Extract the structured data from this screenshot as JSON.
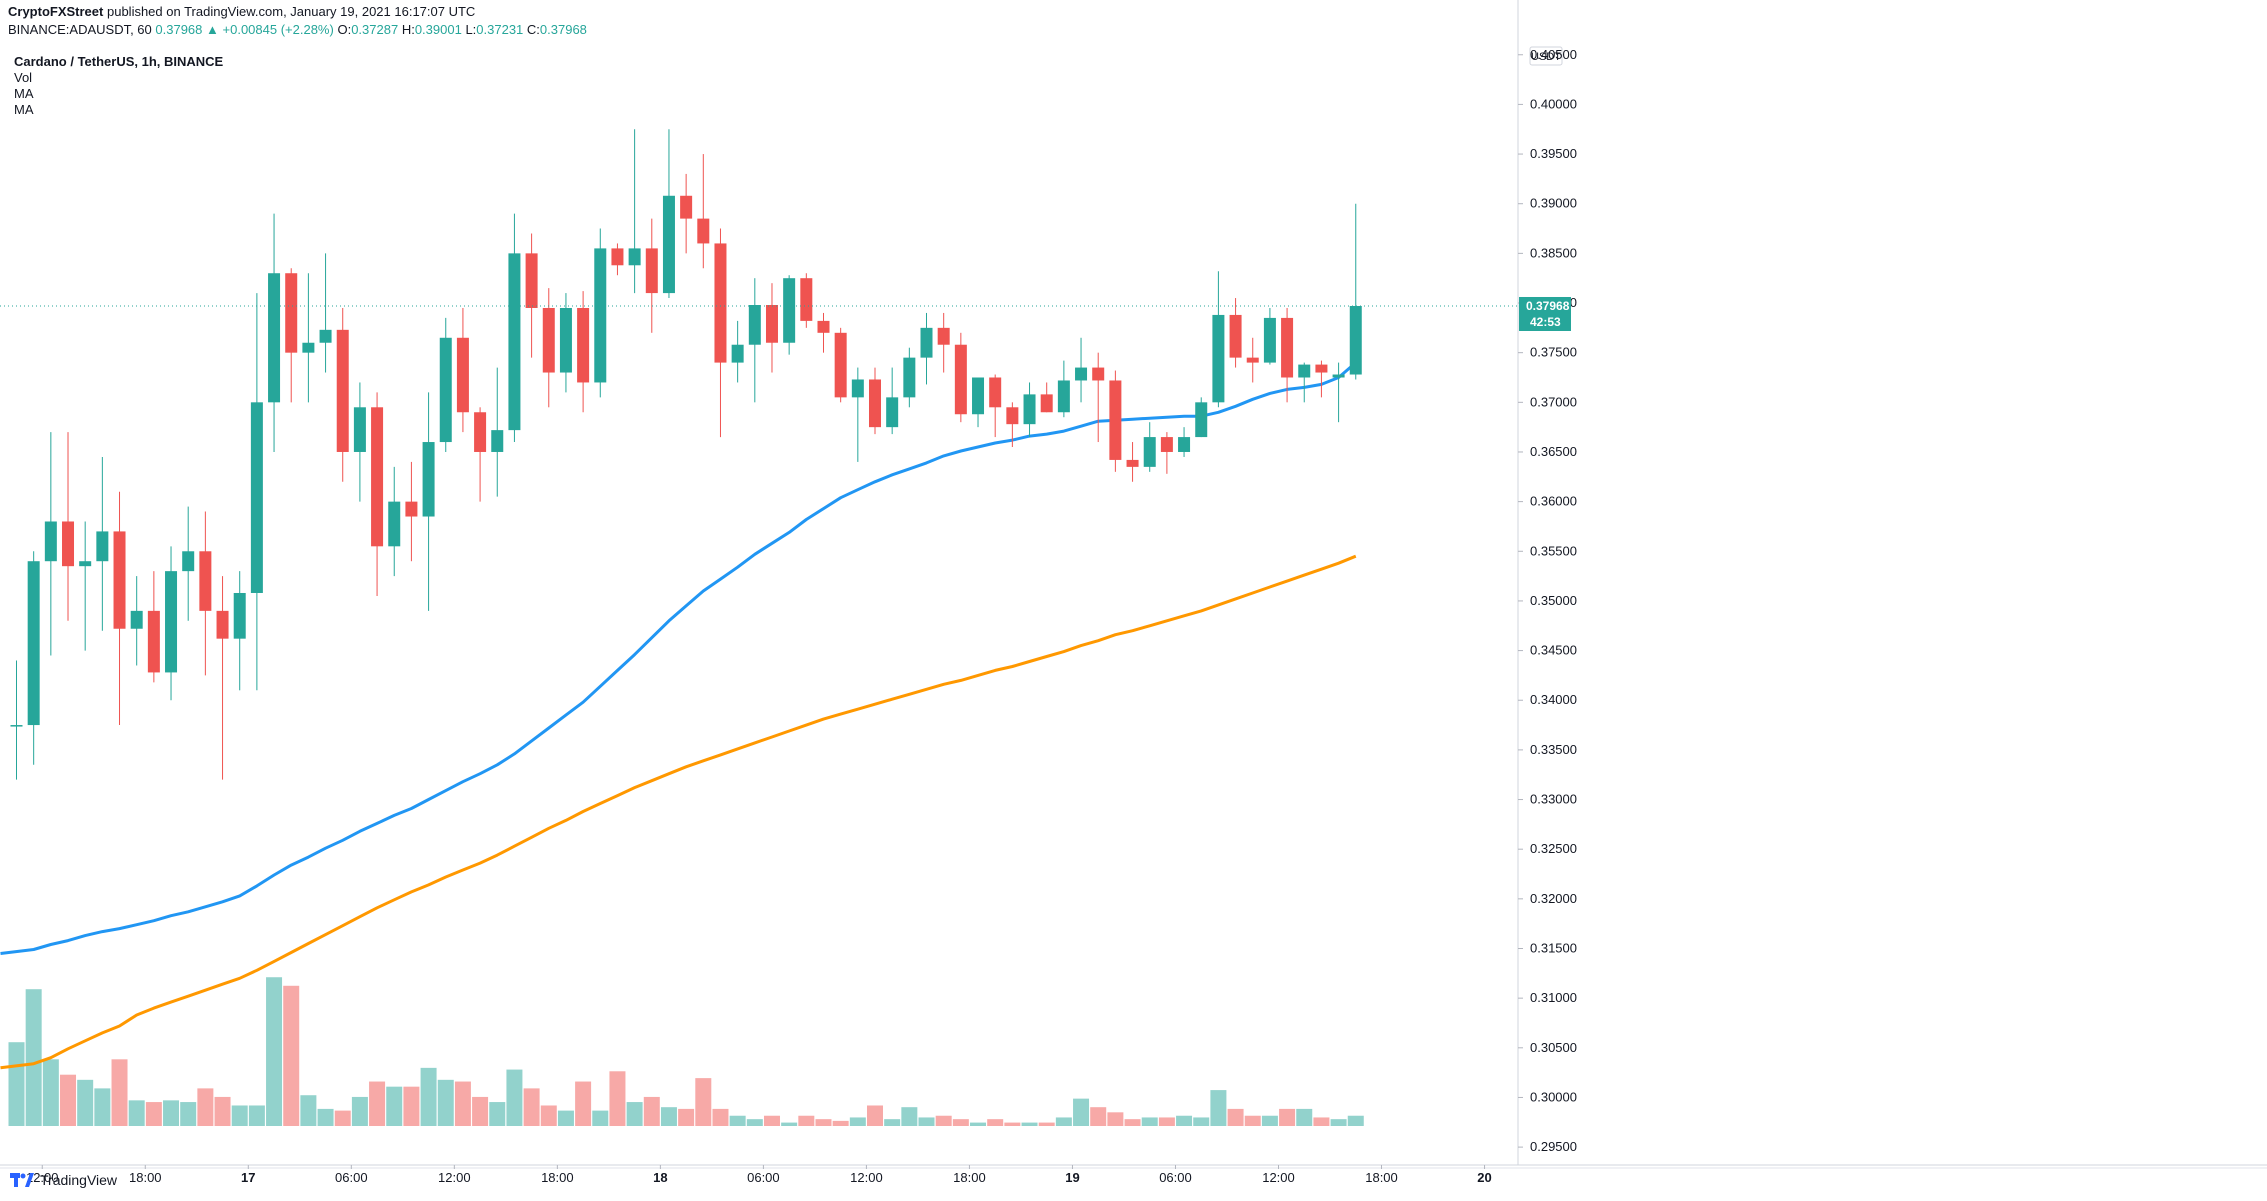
{
  "header": {
    "publisher": "CryptoFXStreet",
    "published_text": "published on TradingView.com, January 19, 2021 16:17:07 UTC",
    "symbol": "BINANCE:ADAUSDT, 60",
    "last": "0.37968",
    "change": "+0.00845 (+2.28%)",
    "O": "0.37287",
    "H": "0.39001",
    "L": "0.37231",
    "C": "0.37968"
  },
  "legend": {
    "title": "Cardano / TetherUS, 1h, BINANCE",
    "items": [
      "Vol",
      "MA",
      "MA"
    ]
  },
  "price_axis": {
    "currency_label": "USDT",
    "current_price": "0.37968",
    "countdown": "42:53"
  },
  "footer": {
    "brand": "TradingView"
  },
  "colors": {
    "up": "#26a69a",
    "down": "#ef5350",
    "vol_up": "#92d2cc",
    "vol_down": "#f7a9a7",
    "ma_fast": "#2196f3",
    "ma_slow": "#ff9800",
    "price_label_bg": "#26a69a"
  },
  "chart_data": {
    "type": "candlestick",
    "title": "Cardano / TetherUS, 1h, BINANCE",
    "ylim": [
      0.2935,
      0.4085
    ],
    "y_ticks": [
      "0.29500",
      "0.30000",
      "0.30500",
      "0.31000",
      "0.31500",
      "0.32000",
      "0.32500",
      "0.33000",
      "0.33500",
      "0.34000",
      "0.34500",
      "0.35000",
      "0.35500",
      "0.36000",
      "0.36500",
      "0.37000",
      "0.37500",
      "0.38000",
      "0.38500",
      "0.39000",
      "0.39500",
      "0.40000",
      "0.40500"
    ],
    "x_ticks": [
      {
        "label": "12:00",
        "bar": 1.5
      },
      {
        "label": "18:00",
        "bar": 7.5
      },
      {
        "label": "17",
        "bar": 13.5
      },
      {
        "label": "06:00",
        "bar": 19.5
      },
      {
        "label": "12:00",
        "bar": 25.5
      },
      {
        "label": "18:00",
        "bar": 31.5
      },
      {
        "label": "18",
        "bar": 37.5
      },
      {
        "label": "06:00",
        "bar": 43.5
      },
      {
        "label": "12:00",
        "bar": 49.5
      },
      {
        "label": "18:00",
        "bar": 55.5
      },
      {
        "label": "19",
        "bar": 61.5
      },
      {
        "label": "06:00",
        "bar": 67.5
      },
      {
        "label": "12:00",
        "bar": 73.5
      },
      {
        "label": "18:00",
        "bar": 79.5
      },
      {
        "label": "20",
        "bar": 85.5
      }
    ],
    "candles": [
      [
        0.3375,
        0.344,
        0.332,
        0.3375
      ],
      [
        0.3375,
        0.355,
        0.3335,
        0.354
      ],
      [
        0.354,
        0.367,
        0.3445,
        0.358
      ],
      [
        0.358,
        0.367,
        0.348,
        0.3535
      ],
      [
        0.3535,
        0.358,
        0.345,
        0.354
      ],
      [
        0.354,
        0.3645,
        0.347,
        0.357
      ],
      [
        0.357,
        0.361,
        0.3375,
        0.3472
      ],
      [
        0.3472,
        0.3525,
        0.3435,
        0.349
      ],
      [
        0.349,
        0.353,
        0.3418,
        0.3428
      ],
      [
        0.3428,
        0.3555,
        0.34,
        0.353
      ],
      [
        0.353,
        0.3595,
        0.348,
        0.355
      ],
      [
        0.355,
        0.359,
        0.3425,
        0.349
      ],
      [
        0.349,
        0.3525,
        0.332,
        0.3462
      ],
      [
        0.3462,
        0.353,
        0.341,
        0.3508
      ],
      [
        0.3508,
        0.381,
        0.341,
        0.37
      ],
      [
        0.37,
        0.389,
        0.365,
        0.383
      ],
      [
        0.383,
        0.3835,
        0.37,
        0.375
      ],
      [
        0.375,
        0.383,
        0.37,
        0.376
      ],
      [
        0.376,
        0.385,
        0.373,
        0.3773
      ],
      [
        0.3773,
        0.3795,
        0.362,
        0.365
      ],
      [
        0.365,
        0.372,
        0.36,
        0.3695
      ],
      [
        0.3695,
        0.371,
        0.3505,
        0.3555
      ],
      [
        0.3555,
        0.3635,
        0.3525,
        0.36
      ],
      [
        0.36,
        0.364,
        0.354,
        0.3585
      ],
      [
        0.3585,
        0.371,
        0.349,
        0.366
      ],
      [
        0.366,
        0.3785,
        0.365,
        0.3765
      ],
      [
        0.3765,
        0.3795,
        0.367,
        0.369
      ],
      [
        0.369,
        0.3695,
        0.36,
        0.365
      ],
      [
        0.365,
        0.3735,
        0.3605,
        0.3672
      ],
      [
        0.3672,
        0.389,
        0.366,
        0.385
      ],
      [
        0.385,
        0.387,
        0.3745,
        0.3795
      ],
      [
        0.3795,
        0.3815,
        0.3695,
        0.373
      ],
      [
        0.373,
        0.381,
        0.371,
        0.3795
      ],
      [
        0.3795,
        0.3812,
        0.369,
        0.372
      ],
      [
        0.372,
        0.3875,
        0.3705,
        0.3855
      ],
      [
        0.3855,
        0.386,
        0.3828,
        0.3838
      ],
      [
        0.3838,
        0.3975,
        0.381,
        0.3855
      ],
      [
        0.3855,
        0.3885,
        0.377,
        0.381
      ],
      [
        0.381,
        0.3975,
        0.3805,
        0.3908
      ],
      [
        0.3908,
        0.393,
        0.385,
        0.3885
      ],
      [
        0.3885,
        0.395,
        0.3835,
        0.386
      ],
      [
        0.386,
        0.3875,
        0.3665,
        0.374
      ],
      [
        0.374,
        0.3782,
        0.372,
        0.3758
      ],
      [
        0.3758,
        0.3825,
        0.37,
        0.3798
      ],
      [
        0.3798,
        0.382,
        0.373,
        0.376
      ],
      [
        0.376,
        0.3828,
        0.3748,
        0.3825
      ],
      [
        0.3825,
        0.383,
        0.3775,
        0.3782
      ],
      [
        0.3782,
        0.379,
        0.375,
        0.377
      ],
      [
        0.377,
        0.3775,
        0.37,
        0.3705
      ],
      [
        0.3705,
        0.3735,
        0.364,
        0.3723
      ],
      [
        0.3723,
        0.3735,
        0.3668,
        0.3675
      ],
      [
        0.3675,
        0.3735,
        0.3668,
        0.3705
      ],
      [
        0.3705,
        0.3755,
        0.3695,
        0.3745
      ],
      [
        0.3745,
        0.379,
        0.3718,
        0.3775
      ],
      [
        0.3775,
        0.379,
        0.373,
        0.3758
      ],
      [
        0.3758,
        0.377,
        0.368,
        0.3688
      ],
      [
        0.3688,
        0.3725,
        0.3675,
        0.3725
      ],
      [
        0.3725,
        0.3728,
        0.3665,
        0.3695
      ],
      [
        0.3695,
        0.37,
        0.3655,
        0.3678
      ],
      [
        0.3678,
        0.372,
        0.3665,
        0.3708
      ],
      [
        0.3708,
        0.372,
        0.369,
        0.369
      ],
      [
        0.369,
        0.3742,
        0.3685,
        0.3722
      ],
      [
        0.3722,
        0.3765,
        0.37,
        0.3735
      ],
      [
        0.3735,
        0.375,
        0.366,
        0.3722
      ],
      [
        0.3722,
        0.3732,
        0.363,
        0.3642
      ],
      [
        0.3642,
        0.366,
        0.362,
        0.3635
      ],
      [
        0.3635,
        0.368,
        0.363,
        0.3665
      ],
      [
        0.3665,
        0.367,
        0.3628,
        0.365
      ],
      [
        0.365,
        0.3675,
        0.3645,
        0.3665
      ],
      [
        0.3665,
        0.3705,
        0.3665,
        0.37
      ],
      [
        0.37,
        0.3832,
        0.3695,
        0.3788
      ],
      [
        0.3788,
        0.3805,
        0.3735,
        0.3745
      ],
      [
        0.3745,
        0.3765,
        0.372,
        0.374
      ],
      [
        0.374,
        0.3795,
        0.3738,
        0.3785
      ],
      [
        0.3785,
        0.3795,
        0.37,
        0.3725
      ],
      [
        0.3725,
        0.374,
        0.37,
        0.3738
      ],
      [
        0.3738,
        0.3742,
        0.3705,
        0.373
      ],
      [
        0.3725,
        0.374,
        0.368,
        0.3728
      ],
      [
        0.3728,
        0.39,
        0.3723,
        0.3797
      ]
    ],
    "volume_scale_max": 1.0,
    "volumes": [
      0.49,
      0.8,
      0.39,
      0.3,
      0.27,
      0.22,
      0.39,
      0.15,
      0.14,
      0.15,
      0.14,
      0.22,
      0.17,
      0.12,
      0.12,
      0.87,
      0.82,
      0.18,
      0.1,
      0.09,
      0.17,
      0.26,
      0.23,
      0.23,
      0.34,
      0.27,
      0.26,
      0.17,
      0.14,
      0.33,
      0.22,
      0.12,
      0.09,
      0.26,
      0.09,
      0.32,
      0.14,
      0.17,
      0.11,
      0.1,
      0.28,
      0.1,
      0.06,
      0.04,
      0.06,
      0.02,
      0.06,
      0.04,
      0.03,
      0.05,
      0.12,
      0.04,
      0.11,
      0.05,
      0.06,
      0.04,
      0.02,
      0.04,
      0.02,
      0.02,
      0.02,
      0.05,
      0.16,
      0.11,
      0.08,
      0.04,
      0.05,
      0.05,
      0.06,
      0.05,
      0.21,
      0.1,
      0.06,
      0.06,
      0.1,
      0.1,
      0.05,
      0.04,
      0.06
    ],
    "series": [
      {
        "name": "MA",
        "values": [
          0.3145,
          0.3149,
          0.3154,
          0.3158,
          0.3163,
          0.3167,
          0.317,
          0.3174,
          0.3178,
          0.3183,
          0.3187,
          0.3192,
          0.3197,
          0.3203,
          0.3213,
          0.3224,
          0.3234,
          0.3242,
          0.3251,
          0.3259,
          0.3268,
          0.3276,
          0.3284,
          0.3291,
          0.33,
          0.3309,
          0.3318,
          0.3326,
          0.3335,
          0.3346,
          0.3359,
          0.3372,
          0.3385,
          0.3398,
          0.3414,
          0.343,
          0.3446,
          0.3463,
          0.348,
          0.3495,
          0.351,
          0.3522,
          0.3534,
          0.3547,
          0.3558,
          0.3569,
          0.3582,
          0.3593,
          0.3604,
          0.3612,
          0.362,
          0.3627,
          0.3633,
          0.3639,
          0.3646,
          0.3651,
          0.3655,
          0.3659,
          0.3662,
          0.3666,
          0.3668,
          0.3671,
          0.3676,
          0.3681,
          0.3682,
          0.3683,
          0.3684,
          0.3685,
          0.3686,
          0.3686,
          0.369,
          0.3696,
          0.3703,
          0.3709,
          0.3713,
          0.3715,
          0.3718,
          0.3725,
          0.374
        ]
      },
      {
        "name": "MA",
        "values": [
          0.303,
          0.3034,
          0.304,
          0.3049,
          0.3057,
          0.3065,
          0.3072,
          0.3083,
          0.309,
          0.3096,
          0.3102,
          0.3108,
          0.3114,
          0.312,
          0.3128,
          0.3137,
          0.3146,
          0.3155,
          0.3164,
          0.3173,
          0.3182,
          0.3191,
          0.3199,
          0.3207,
          0.3214,
          0.3222,
          0.3229,
          0.3236,
          0.3244,
          0.3253,
          0.3262,
          0.3271,
          0.3279,
          0.3288,
          0.3296,
          0.3304,
          0.3312,
          0.3319,
          0.3326,
          0.3333,
          0.3339,
          0.3345,
          0.3351,
          0.3357,
          0.3363,
          0.3369,
          0.3375,
          0.3381,
          0.3386,
          0.3391,
          0.3396,
          0.3401,
          0.3406,
          0.3411,
          0.3416,
          0.342,
          0.3425,
          0.343,
          0.3434,
          0.3439,
          0.3444,
          0.3449,
          0.3455,
          0.346,
          0.3466,
          0.347,
          0.3475,
          0.348,
          0.3485,
          0.349,
          0.3496,
          0.3502,
          0.3508,
          0.3514,
          0.352,
          0.3526,
          0.3532,
          0.3538,
          0.3545
        ]
      }
    ]
  }
}
